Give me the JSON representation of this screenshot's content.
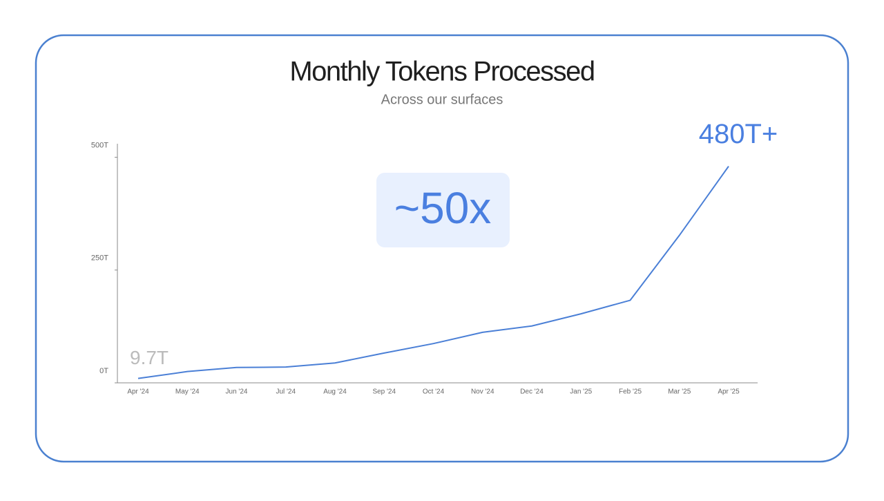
{
  "chart_data": {
    "type": "line",
    "title": "Monthly Tokens Processed",
    "subtitle": "Across our surfaces",
    "annotations": [
      "~50x"
    ],
    "categories": [
      "Apr '24",
      "May '24",
      "Jun '24",
      "Jul '24",
      "Aug '24",
      "Sep '24",
      "Oct '24",
      "Nov '24",
      "Dec '24",
      "Jan '25",
      "Feb '25",
      "Mar '25",
      "Apr '25"
    ],
    "values": [
      9.7,
      25,
      34,
      35,
      44,
      66,
      87,
      112,
      126,
      153,
      183,
      327,
      480
    ],
    "value_labels": [
      "9.7T",
      null,
      null,
      null,
      null,
      null,
      null,
      null,
      null,
      null,
      null,
      null,
      "480T+"
    ],
    "color": "#4a7fd6",
    "ylim": [
      0,
      530
    ],
    "yticks": [
      {
        "value": 0,
        "label": "0T"
      },
      {
        "value": 250,
        "label": "250T"
      },
      {
        "value": 500,
        "label": "500T"
      }
    ],
    "grid": false
  }
}
